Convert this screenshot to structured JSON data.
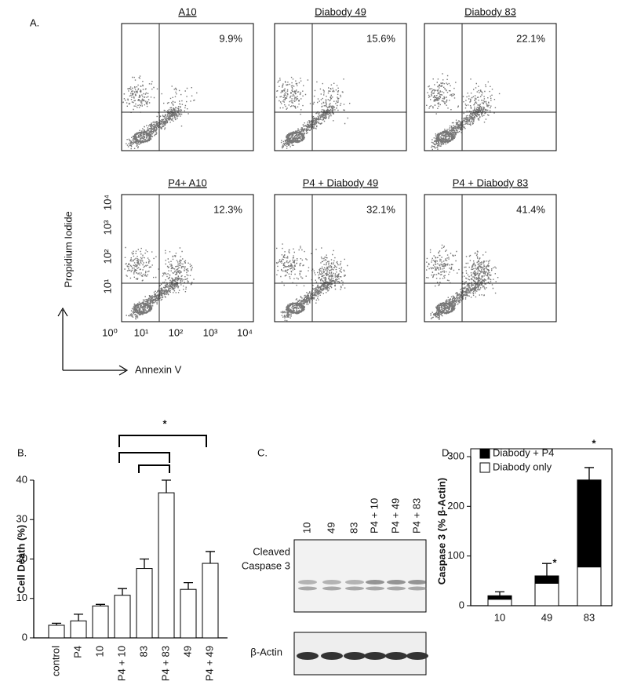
{
  "panel_labels": [
    "A.",
    "B.",
    "C.",
    "D."
  ],
  "flow": {
    "plots": [
      {
        "title": "A10",
        "percent": "9.9%"
      },
      {
        "title": "Diabody 49",
        "percent": "15.6%"
      },
      {
        "title": "Diabody 83",
        "percent": "22.1%"
      },
      {
        "title": "P4+ A10",
        "percent": "12.3%"
      },
      {
        "title": "P4 + Diabody 49",
        "percent": "32.1%"
      },
      {
        "title": "P4 + Diabody 83",
        "percent": "41.4%"
      }
    ],
    "x_ticks": [
      "10⁰",
      "10¹",
      "10²",
      "10³",
      "10⁴"
    ],
    "y_ticks": [
      "10¹",
      "10²",
      "10³",
      "10⁴"
    ],
    "y_label": "Propidium Iodide",
    "x_label": "Annexin V"
  },
  "blot": {
    "lanes": [
      "10",
      "49",
      "83",
      "P4 + 10",
      "P4 + 49",
      "P4 + 83"
    ],
    "cleaved_label": [
      "Cleaved",
      "Caspase 3"
    ],
    "actin_label": "β-Actin"
  },
  "chart_data": [
    {
      "type": "bar",
      "ylabel": "Cell Death (%)",
      "categories": [
        "control",
        "P4",
        "10",
        "P4 + 10",
        "83",
        "P4 + 83",
        "49",
        "P4 + 49"
      ],
      "values": [
        3.2,
        4.3,
        8.1,
        10.8,
        17.6,
        36.8,
        12.3,
        18.9
      ],
      "errors": [
        0.5,
        1.7,
        0.4,
        1.7,
        2.4,
        3.2,
        1.7,
        3.0
      ],
      "color": "#ffffff",
      "ylim": [
        0,
        40
      ],
      "yticks": [
        0,
        10,
        20,
        30,
        40
      ],
      "annotations": [
        "*"
      ]
    },
    {
      "type": "stacked_bar",
      "ylabel": "Caspase 3 (% β-Actin)",
      "categories": [
        "10",
        "49",
        "83"
      ],
      "series": [
        {
          "name": "Diabody only",
          "color": "#ffffff",
          "values": [
            13,
            45,
            78
          ]
        },
        {
          "name": "Diabody + P4",
          "color": "#000000",
          "values": [
            7,
            15,
            175
          ],
          "errors": [
            8,
            25,
            25
          ]
        }
      ],
      "ylim": [
        0,
        300
      ],
      "yticks": [
        0,
        100,
        200,
        300
      ],
      "legend": "upper left",
      "annotations": [
        "*",
        "*"
      ]
    }
  ]
}
